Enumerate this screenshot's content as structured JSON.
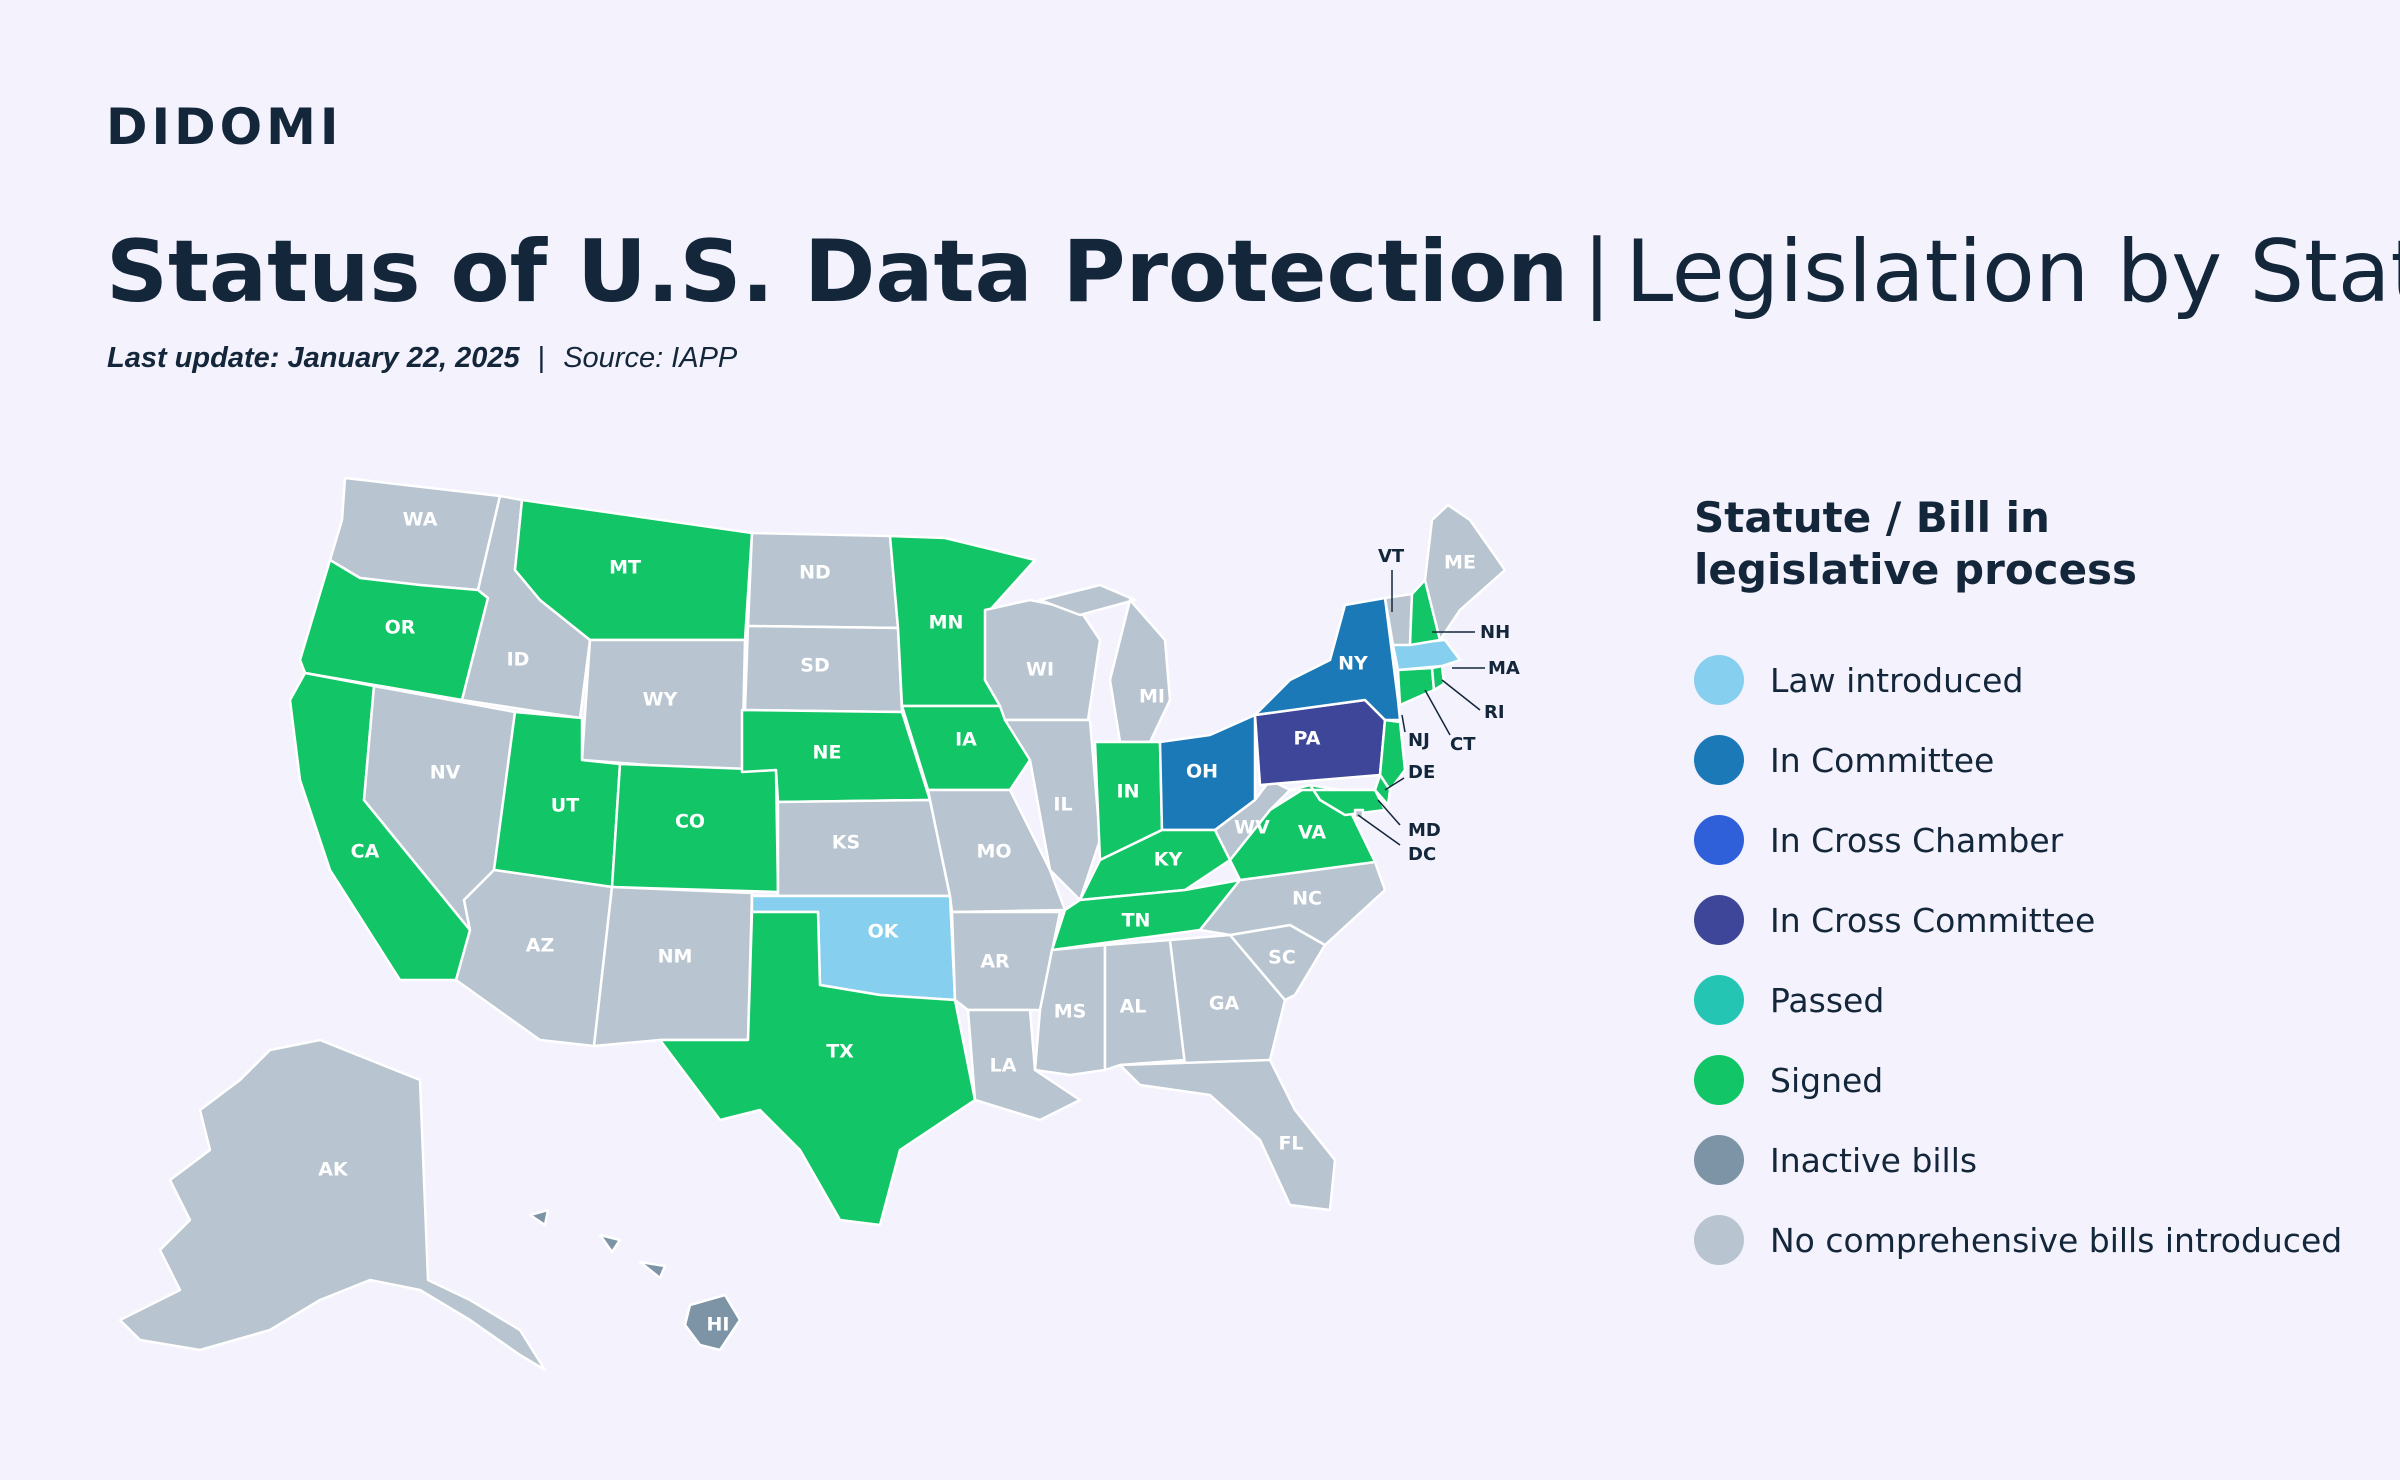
{
  "brand": {
    "logo": "DIDOMI"
  },
  "header": {
    "title_bold": "Status of U.S. Data Protection",
    "title_separator": "|",
    "title_light": "Legislation by State",
    "last_update": "Last update: January 22, 2025",
    "separator": "|",
    "source": "Source: IAPP"
  },
  "legend": {
    "title": "Statute / Bill in legislative process",
    "items": [
      {
        "label": "Law introduced",
        "color": "#86cfee"
      },
      {
        "label": "In Committee",
        "color": "#1b79b8"
      },
      {
        "label": "In Cross Chamber",
        "color": "#2f5fd9"
      },
      {
        "label": "In Cross Committee",
        "color": "#3d4699"
      },
      {
        "label": "Passed",
        "color": "#24c6b3"
      },
      {
        "label": "Signed",
        "color": "#12c567"
      },
      {
        "label": "Inactive bills",
        "color": "#7d93a6"
      },
      {
        "label": "No comprehensive bills introduced",
        "color": "#b8c4d0"
      }
    ]
  },
  "status_colors": {
    "law_introduced": "#86cfee",
    "in_committee": "#1b79b8",
    "in_cross_chamber": "#2f5fd9",
    "in_cross_committee": "#3d4699",
    "passed": "#24c6b3",
    "signed": "#12c567",
    "inactive": "#7d93a6",
    "none": "#b8c4d0"
  },
  "states": {
    "WA": "none",
    "OR": "signed",
    "CA": "signed",
    "ID": "none",
    "NV": "none",
    "MT": "signed",
    "WY": "none",
    "UT": "signed",
    "AZ": "none",
    "CO": "signed",
    "NM": "none",
    "ND": "none",
    "SD": "none",
    "NE": "signed",
    "KS": "none",
    "OK": "law_introduced",
    "TX": "signed",
    "MN": "signed",
    "IA": "signed",
    "MO": "none",
    "AR": "none",
    "LA": "none",
    "WI": "none",
    "IL": "none",
    "MI": "none",
    "IN": "signed",
    "OH": "in_committee",
    "KY": "signed",
    "TN": "signed",
    "MS": "none",
    "AL": "none",
    "GA": "none",
    "FL": "none",
    "SC": "none",
    "NC": "none",
    "VA": "signed",
    "WV": "none",
    "PA": "in_cross_committee",
    "NY": "in_committee",
    "VT": "none",
    "NH": "signed",
    "ME": "none",
    "MA": "law_introduced",
    "RI": "signed",
    "CT": "signed",
    "NJ": "signed",
    "DE": "signed",
    "MD": "signed",
    "DC": "none",
    "AK": "none",
    "HI": "inactive"
  }
}
